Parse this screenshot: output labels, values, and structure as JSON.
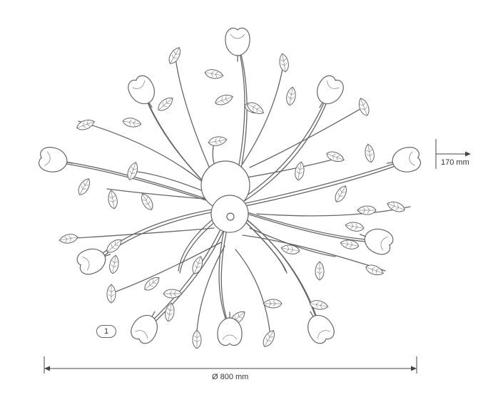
{
  "diagram": {
    "labels": {
      "height_dimension": "170 mm",
      "diameter_dimension": "Ø 800 mm",
      "item_number": "1"
    },
    "colors": {
      "line": "#666666",
      "background": "#ffffff"
    }
  }
}
